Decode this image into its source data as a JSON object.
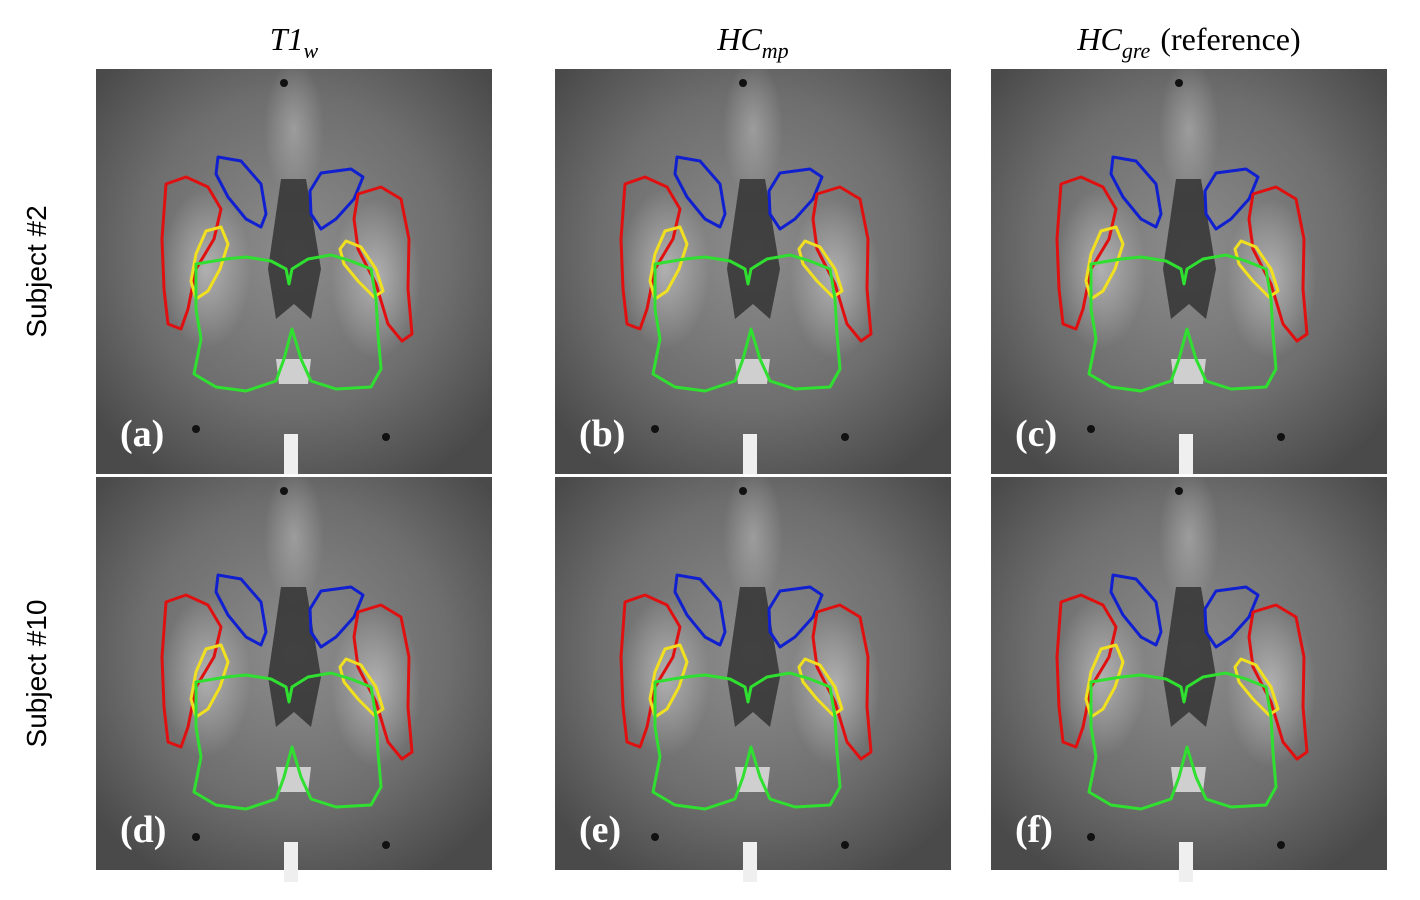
{
  "columns": [
    {
      "base": "T1",
      "sub": "w"
    },
    {
      "base": "HC",
      "sub": "mp"
    },
    {
      "base": "HC",
      "sub": "gre",
      "suffix": "(reference)"
    }
  ],
  "rows": [
    "Subject #2",
    "Subject #10"
  ],
  "panel_labels": [
    "(a)",
    "(b)",
    "(c)",
    "(d)",
    "(e)",
    "(f)"
  ]
}
